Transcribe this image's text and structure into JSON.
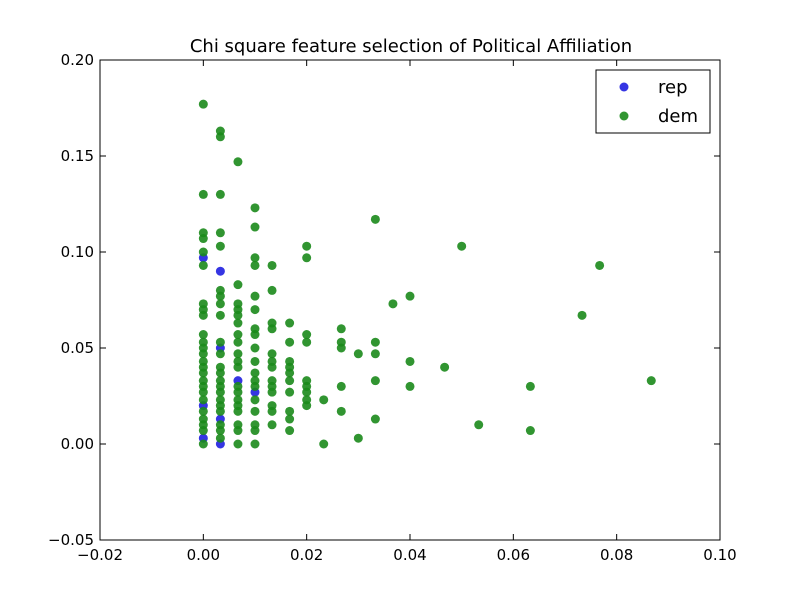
{
  "chart_data": {
    "type": "scatter",
    "title": "Chi square feature selection of Political Affiliation",
    "xlabel": "",
    "ylabel": "",
    "xlim": [
      -0.02,
      0.1
    ],
    "ylim": [
      -0.05,
      0.2
    ],
    "xticks": [
      -0.02,
      0.0,
      0.02,
      0.04,
      0.06,
      0.08,
      0.1
    ],
    "xtick_labels": [
      "−0.02",
      "0.00",
      "0.02",
      "0.04",
      "0.06",
      "0.08",
      "0.10"
    ],
    "yticks": [
      -0.05,
      0.0,
      0.05,
      0.1,
      0.15,
      0.2
    ],
    "ytick_labels": [
      "−0.05",
      "0.00",
      "0.05",
      "0.10",
      "0.15",
      "0.20"
    ],
    "grid": false,
    "legend_position": "top-right",
    "series": [
      {
        "name": "rep",
        "color": "#1f1fe0",
        "points": [
          [
            0.0,
            0.097
          ],
          [
            0.0033,
            0.09
          ],
          [
            0.0033,
            0.05
          ],
          [
            0.0067,
            0.033
          ],
          [
            0.01,
            0.027
          ],
          [
            0.0,
            0.02
          ],
          [
            0.0033,
            0.013
          ],
          [
            0.0,
            0.003
          ],
          [
            0.0033,
            0.0
          ]
        ]
      },
      {
        "name": "dem",
        "color": "#1b8a1b",
        "points": [
          [
            0.0,
            0.177
          ],
          [
            0.0,
            0.13
          ],
          [
            0.0,
            0.11
          ],
          [
            0.0,
            0.107
          ],
          [
            0.0,
            0.1
          ],
          [
            0.0,
            0.093
          ],
          [
            0.0,
            0.073
          ],
          [
            0.0,
            0.07
          ],
          [
            0.0,
            0.067
          ],
          [
            0.0,
            0.057
          ],
          [
            0.0,
            0.053
          ],
          [
            0.0,
            0.05
          ],
          [
            0.0,
            0.047
          ],
          [
            0.0,
            0.043
          ],
          [
            0.0,
            0.04
          ],
          [
            0.0,
            0.037
          ],
          [
            0.0,
            0.033
          ],
          [
            0.0,
            0.03
          ],
          [
            0.0,
            0.027
          ],
          [
            0.0,
            0.023
          ],
          [
            0.0,
            0.017
          ],
          [
            0.0,
            0.013
          ],
          [
            0.0,
            0.01
          ],
          [
            0.0,
            0.007
          ],
          [
            0.0,
            0.0
          ],
          [
            0.0033,
            0.163
          ],
          [
            0.0033,
            0.16
          ],
          [
            0.0033,
            0.13
          ],
          [
            0.0033,
            0.11
          ],
          [
            0.0033,
            0.103
          ],
          [
            0.0033,
            0.08
          ],
          [
            0.0033,
            0.077
          ],
          [
            0.0033,
            0.073
          ],
          [
            0.0033,
            0.067
          ],
          [
            0.0033,
            0.053
          ],
          [
            0.0033,
            0.047
          ],
          [
            0.0033,
            0.04
          ],
          [
            0.0033,
            0.037
          ],
          [
            0.0033,
            0.033
          ],
          [
            0.0033,
            0.03
          ],
          [
            0.0033,
            0.027
          ],
          [
            0.0033,
            0.023
          ],
          [
            0.0033,
            0.02
          ],
          [
            0.0033,
            0.017
          ],
          [
            0.0033,
            0.01
          ],
          [
            0.0033,
            0.007
          ],
          [
            0.0033,
            0.003
          ],
          [
            0.0067,
            0.147
          ],
          [
            0.0067,
            0.083
          ],
          [
            0.0067,
            0.073
          ],
          [
            0.0067,
            0.07
          ],
          [
            0.0067,
            0.067
          ],
          [
            0.0067,
            0.063
          ],
          [
            0.0067,
            0.057
          ],
          [
            0.0067,
            0.053
          ],
          [
            0.0067,
            0.047
          ],
          [
            0.0067,
            0.043
          ],
          [
            0.0067,
            0.04
          ],
          [
            0.0067,
            0.03
          ],
          [
            0.0067,
            0.027
          ],
          [
            0.0067,
            0.023
          ],
          [
            0.0067,
            0.02
          ],
          [
            0.0067,
            0.017
          ],
          [
            0.0067,
            0.01
          ],
          [
            0.0067,
            0.007
          ],
          [
            0.0067,
            0.0
          ],
          [
            0.01,
            0.123
          ],
          [
            0.01,
            0.113
          ],
          [
            0.01,
            0.097
          ],
          [
            0.01,
            0.093
          ],
          [
            0.01,
            0.077
          ],
          [
            0.01,
            0.07
          ],
          [
            0.01,
            0.06
          ],
          [
            0.01,
            0.057
          ],
          [
            0.01,
            0.05
          ],
          [
            0.01,
            0.043
          ],
          [
            0.01,
            0.037
          ],
          [
            0.01,
            0.033
          ],
          [
            0.01,
            0.03
          ],
          [
            0.01,
            0.023
          ],
          [
            0.01,
            0.017
          ],
          [
            0.01,
            0.01
          ],
          [
            0.01,
            0.007
          ],
          [
            0.01,
            0.0
          ],
          [
            0.0133,
            0.093
          ],
          [
            0.0133,
            0.08
          ],
          [
            0.0133,
            0.063
          ],
          [
            0.0133,
            0.06
          ],
          [
            0.0133,
            0.047
          ],
          [
            0.0133,
            0.043
          ],
          [
            0.0133,
            0.04
          ],
          [
            0.0133,
            0.033
          ],
          [
            0.0133,
            0.03
          ],
          [
            0.0133,
            0.027
          ],
          [
            0.0133,
            0.02
          ],
          [
            0.0133,
            0.017
          ],
          [
            0.0133,
            0.01
          ],
          [
            0.0167,
            0.063
          ],
          [
            0.0167,
            0.053
          ],
          [
            0.0167,
            0.043
          ],
          [
            0.0167,
            0.04
          ],
          [
            0.0167,
            0.037
          ],
          [
            0.0167,
            0.033
          ],
          [
            0.0167,
            0.027
          ],
          [
            0.0167,
            0.017
          ],
          [
            0.0167,
            0.013
          ],
          [
            0.0167,
            0.007
          ],
          [
            0.02,
            0.103
          ],
          [
            0.02,
            0.097
          ],
          [
            0.02,
            0.057
          ],
          [
            0.02,
            0.053
          ],
          [
            0.02,
            0.033
          ],
          [
            0.02,
            0.03
          ],
          [
            0.02,
            0.027
          ],
          [
            0.02,
            0.023
          ],
          [
            0.02,
            0.02
          ],
          [
            0.0233,
            0.023
          ],
          [
            0.0233,
            0.0
          ],
          [
            0.0267,
            0.06
          ],
          [
            0.0267,
            0.053
          ],
          [
            0.0267,
            0.05
          ],
          [
            0.0267,
            0.03
          ],
          [
            0.0267,
            0.017
          ],
          [
            0.03,
            0.047
          ],
          [
            0.03,
            0.003
          ],
          [
            0.0333,
            0.117
          ],
          [
            0.0333,
            0.053
          ],
          [
            0.0333,
            0.047
          ],
          [
            0.0333,
            0.033
          ],
          [
            0.0333,
            0.013
          ],
          [
            0.0367,
            0.073
          ],
          [
            0.04,
            0.077
          ],
          [
            0.04,
            0.043
          ],
          [
            0.04,
            0.03
          ],
          [
            0.0467,
            0.04
          ],
          [
            0.05,
            0.103
          ],
          [
            0.0533,
            0.01
          ],
          [
            0.0633,
            0.03
          ],
          [
            0.0633,
            0.007
          ],
          [
            0.0733,
            0.067
          ],
          [
            0.0767,
            0.093
          ],
          [
            0.0867,
            0.033
          ]
        ]
      }
    ]
  }
}
